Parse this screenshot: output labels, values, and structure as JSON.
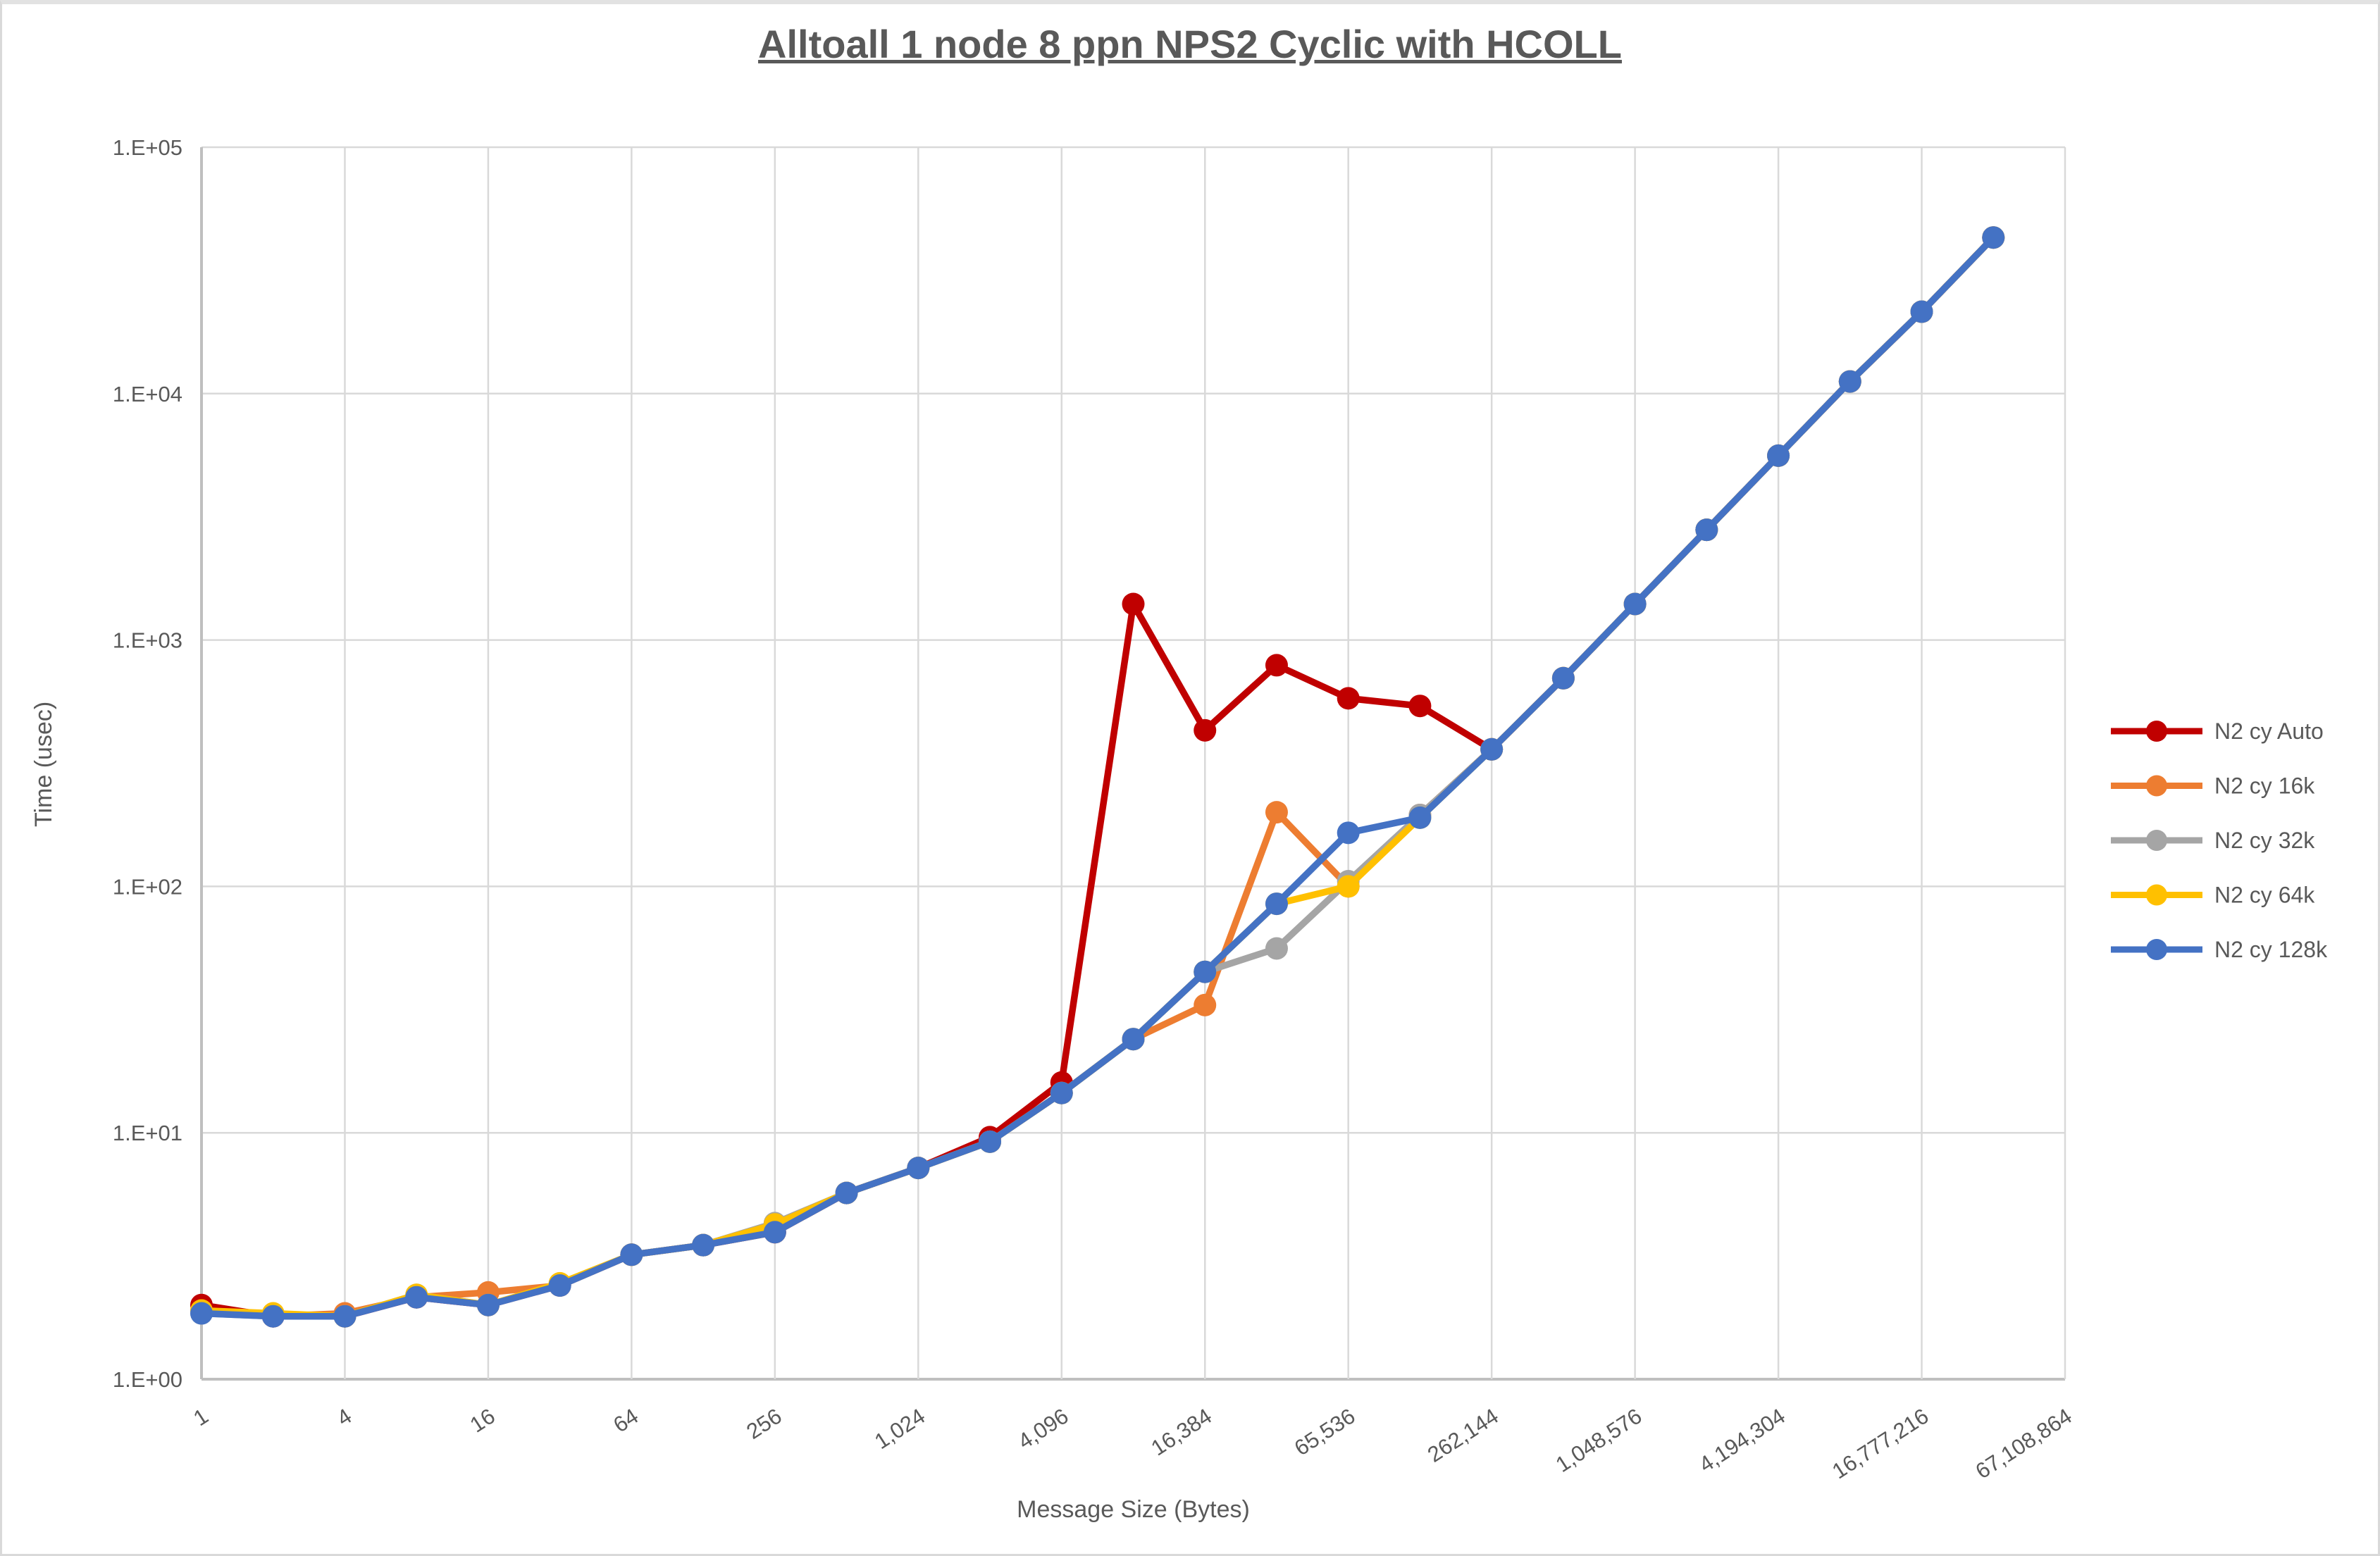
{
  "chart_data": {
    "type": "line",
    "title": "Alltoall 1 node 8 ppn NPS2 Cyclic with HCOLL",
    "xlabel": "Message Size (Bytes)",
    "ylabel": "Time (usec)",
    "x_scale": "log2-categories",
    "y_scale": "log10",
    "ylim": [
      1,
      100000
    ],
    "y_tick_labels": [
      "1.E+00",
      "1.E+01",
      "1.E+02",
      "1.E+03",
      "1.E+04",
      "1.E+05"
    ],
    "x_tick_labels": [
      "1",
      "4",
      "16",
      "64",
      "256",
      "1,024",
      "4,096",
      "16,384",
      "65,536",
      "262,144",
      "1,048,576",
      "4,194,304",
      "16,777,216",
      "67,108,864"
    ],
    "x": [
      1,
      2,
      4,
      8,
      16,
      32,
      64,
      128,
      256,
      512,
      1024,
      2048,
      4096,
      8192,
      16384,
      32768,
      65536,
      131072,
      262144,
      524288,
      1048576,
      2097152,
      4194304,
      8388608,
      16777216,
      33554432
    ],
    "grid": true,
    "legend_position": "right",
    "series": [
      {
        "name": "N2 cy Auto",
        "color": "#C00000",
        "values": [
          2.0,
          1.8,
          1.8,
          2.15,
          2.0,
          2.4,
          3.2,
          3.5,
          3.95,
          5.7,
          7.2,
          9.6,
          16,
          1400,
          430,
          790,
          580,
          540,
          360,
          700,
          1400,
          2800,
          5600,
          11200,
          21500,
          43000
        ]
      },
      {
        "name": "N2 cy 16k",
        "color": "#ED7D31",
        "values": [
          1.9,
          1.8,
          1.85,
          2.15,
          2.25,
          2.4,
          3.2,
          3.5,
          3.95,
          5.7,
          7.2,
          9.2,
          14.5,
          24,
          33,
          200,
          100,
          195,
          360,
          700,
          1400,
          2800,
          5600,
          11200,
          21500,
          43000
        ]
      },
      {
        "name": "N2 cy 32k",
        "color": "#A5A5A5",
        "values": [
          1.85,
          1.8,
          1.8,
          2.2,
          2.0,
          2.4,
          3.2,
          3.5,
          4.3,
          5.7,
          7.2,
          9.2,
          14.5,
          24,
          45,
          56,
          105,
          195,
          360,
          700,
          1400,
          2800,
          5600,
          11200,
          21500,
          43000
        ]
      },
      {
        "name": "N2 cy 64k",
        "color": "#FFC000",
        "values": [
          1.9,
          1.85,
          1.8,
          2.2,
          2.0,
          2.45,
          3.2,
          3.5,
          4.25,
          5.7,
          7.2,
          9.2,
          14.5,
          24,
          45,
          85,
          100,
          190,
          360,
          700,
          1400,
          2800,
          5600,
          11200,
          21500,
          43000
        ]
      },
      {
        "name": "N2 cy 128k",
        "color": "#4472C4",
        "values": [
          1.85,
          1.8,
          1.8,
          2.15,
          2.0,
          2.4,
          3.2,
          3.5,
          3.95,
          5.7,
          7.2,
          9.2,
          14.5,
          24,
          45,
          85,
          165,
          190,
          360,
          700,
          1400,
          2800,
          5600,
          11200,
          21500,
          43000
        ]
      }
    ],
    "colors": {
      "gridline": "#D9D9D9",
      "axis_line": "#BFBFBF",
      "text": "#595959",
      "background": "#FFFFFF"
    }
  }
}
